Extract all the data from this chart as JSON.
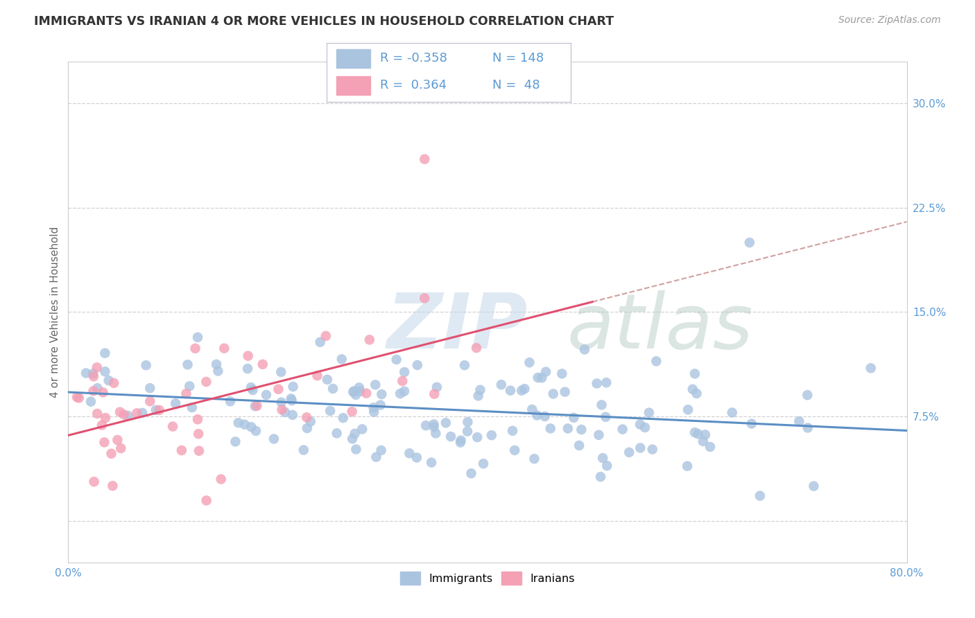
{
  "title": "IMMIGRANTS VS IRANIAN 4 OR MORE VEHICLES IN HOUSEHOLD CORRELATION CHART",
  "source": "Source: ZipAtlas.com",
  "ylabel": "4 or more Vehicles in Household",
  "watermark_zip": "ZIP",
  "watermark_atlas": "atlas",
  "legend_r1": "R = -0.358",
  "legend_n1": "N = 148",
  "legend_r2": "R =  0.364",
  "legend_n2": "N =  48",
  "immigrants_color": "#aac4e0",
  "iranians_color": "#f4a0b5",
  "trend_imm_color": "#5b8ec4",
  "trend_iran_color": "#e05070",
  "trend_iran_dash_color": "#d0a0a0",
  "title_color": "#333333",
  "source_color": "#999999",
  "grid_color": "#cccccc",
  "tick_color": "#5b9bd5",
  "ylabel_color": "#666666",
  "background_color": "#ffffff",
  "xlim": [
    0,
    80
  ],
  "ylim": [
    -3,
    33
  ],
  "yticks": [
    0,
    7.5,
    15.0,
    22.5,
    30.0
  ],
  "ytick_labels": [
    "",
    "7.5%",
    "15.0%",
    "22.5%",
    "30.0%"
  ],
  "xtick_vals": [
    0,
    80
  ],
  "xtick_labels": [
    "0.0%",
    "80.0%"
  ]
}
